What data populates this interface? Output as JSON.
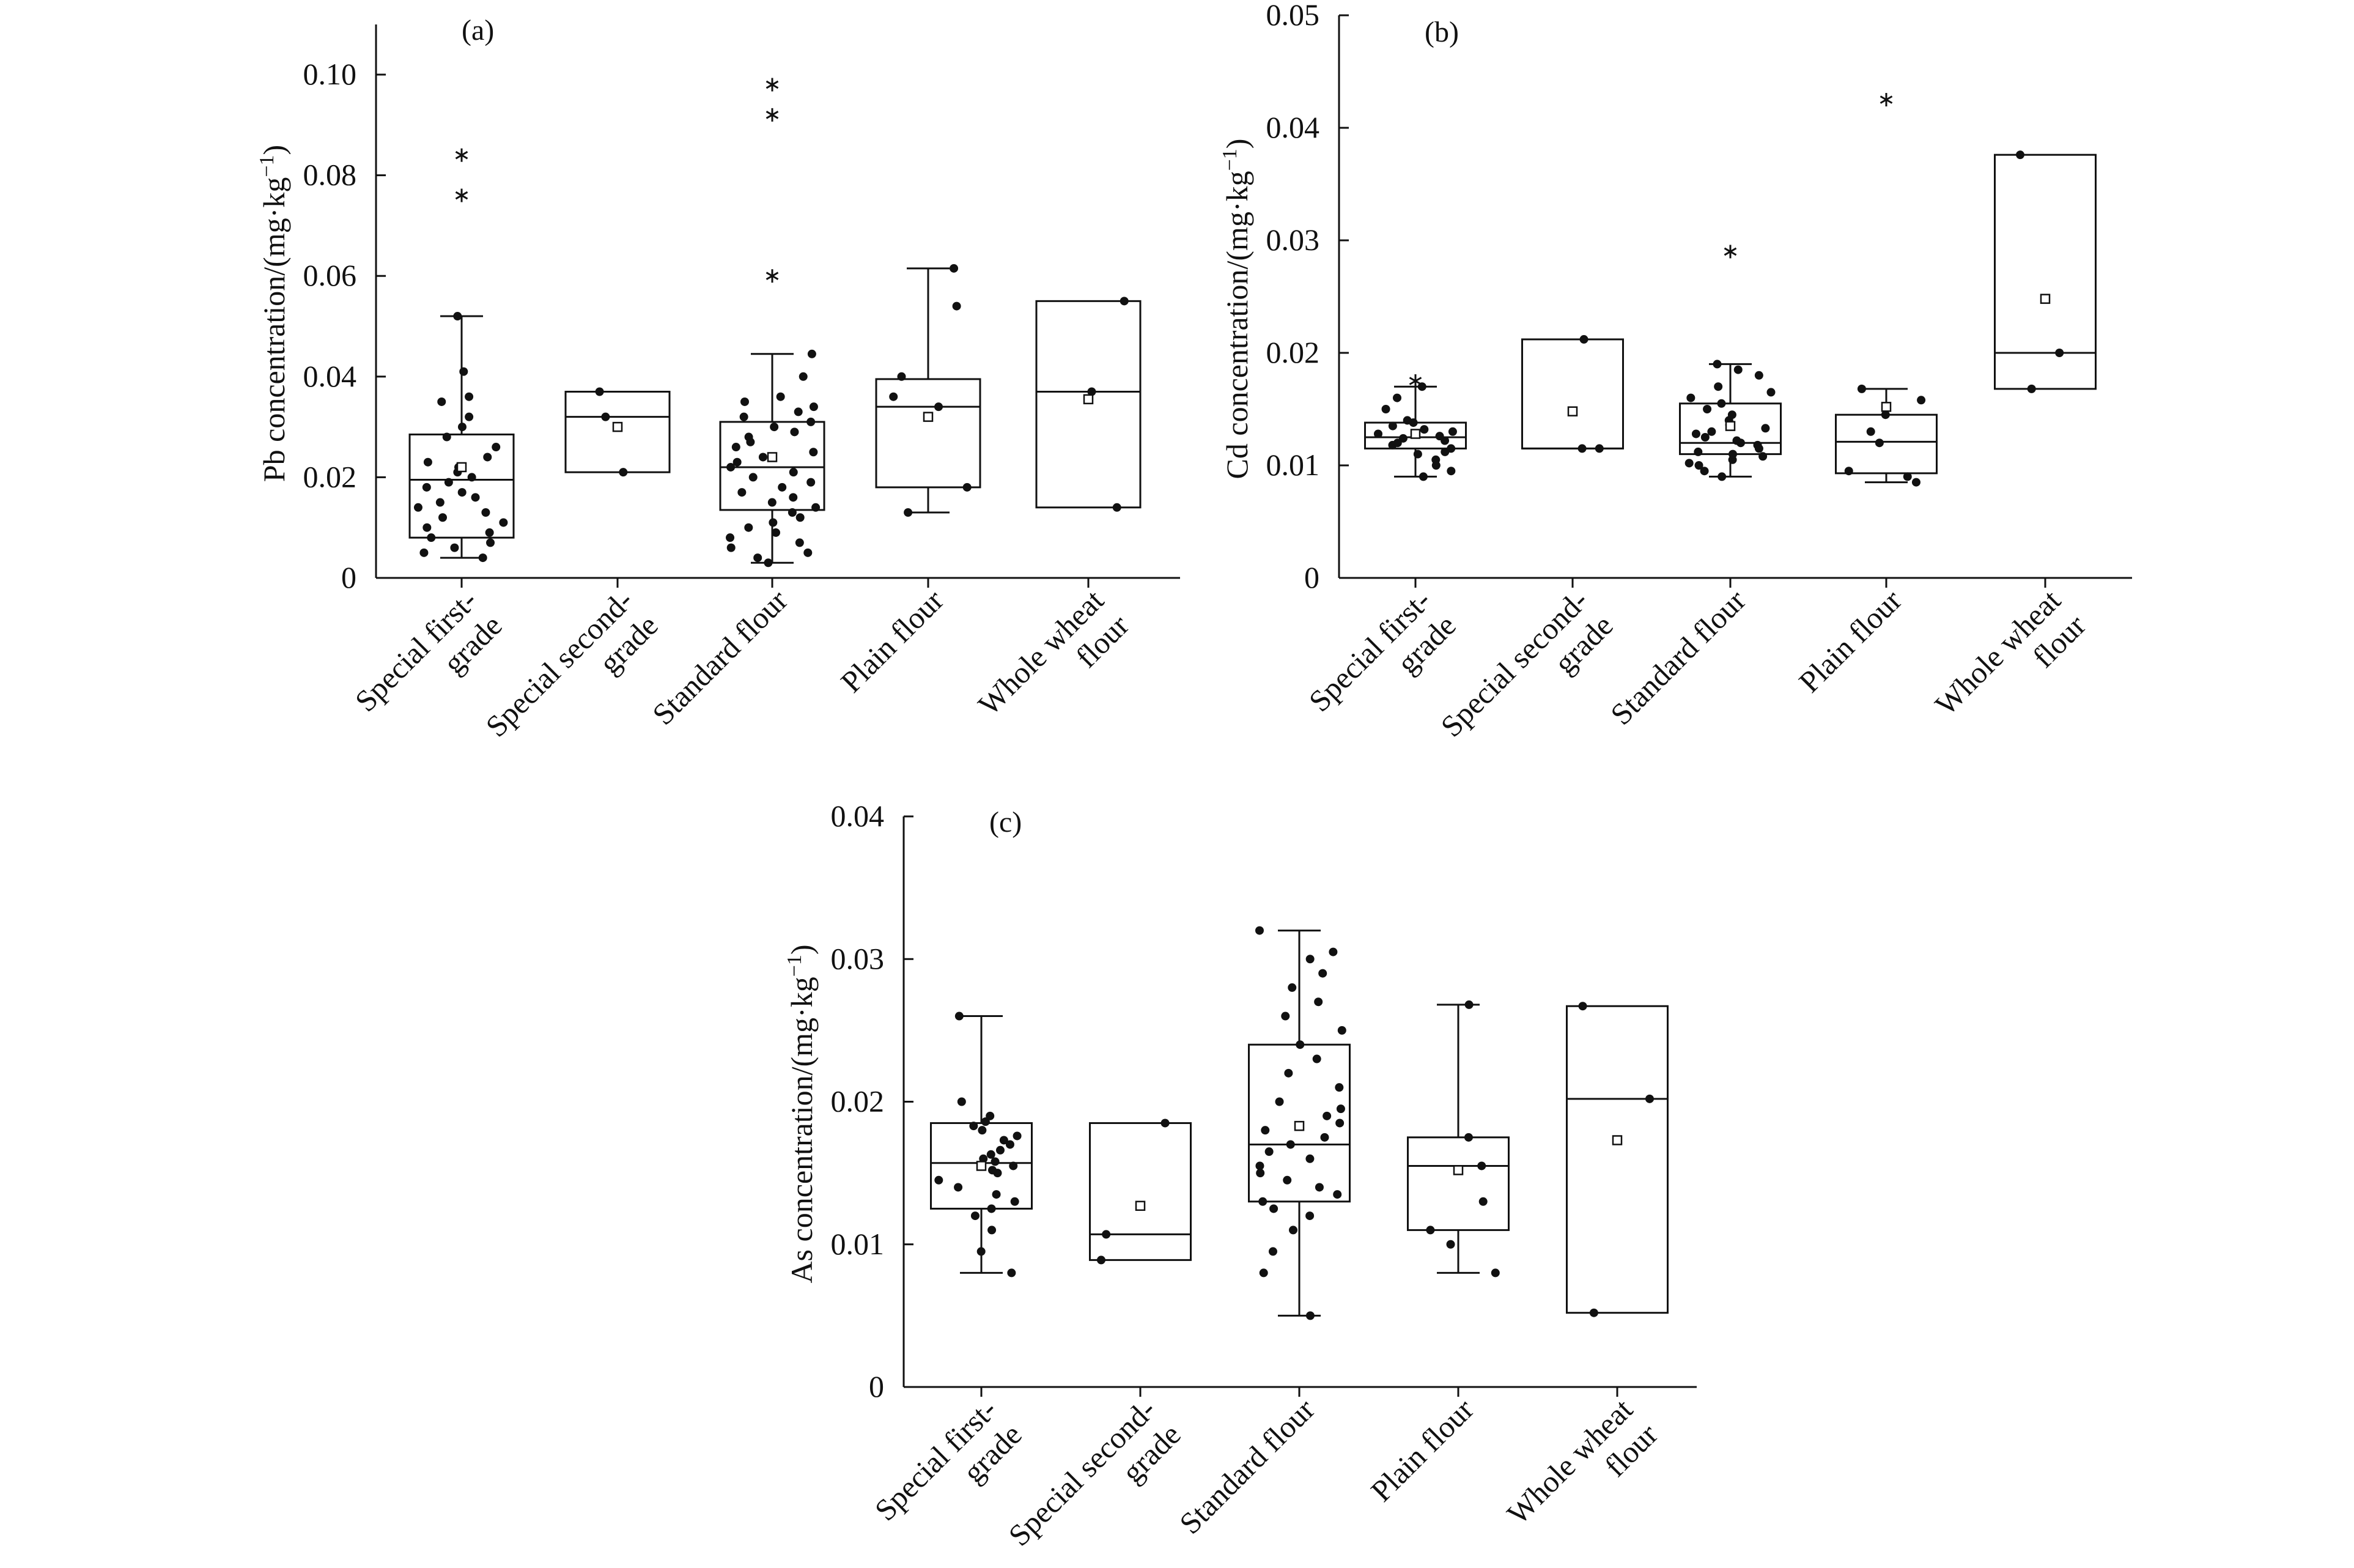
{
  "chart_data": [
    {
      "type": "box",
      "panel_label": "(a)",
      "ylabel": "Pb concentration/(mg·kg",
      "ylabel_sup": "−1",
      "ylabel_close": ")",
      "ylim": [
        0,
        0.11
      ],
      "yticks": [
        0,
        0.02,
        0.04,
        0.06,
        0.08,
        0.1
      ],
      "ytick_labels": [
        "0",
        "0.02",
        "0.04",
        "0.06",
        "0.08",
        "0.10"
      ],
      "categories": [
        "Special first-|grade",
        "Special second-|grade",
        "Standard flour",
        "Plain flour",
        "Whole wheat|flour"
      ],
      "boxes": [
        {
          "min": 0.004,
          "q1": 0.008,
          "median": 0.0195,
          "q3": 0.0285,
          "max": 0.052,
          "mean": 0.022,
          "outliers": [
            0.076,
            0.084
          ],
          "points": [
            0.004,
            0.005,
            0.006,
            0.007,
            0.008,
            0.009,
            0.01,
            0.011,
            0.012,
            0.013,
            0.014,
            0.015,
            0.016,
            0.017,
            0.018,
            0.019,
            0.02,
            0.021,
            0.022,
            0.023,
            0.024,
            0.026,
            0.028,
            0.03,
            0.032,
            0.035,
            0.036,
            0.041,
            0.052
          ]
        },
        {
          "min": 0.021,
          "q1": 0.021,
          "median": 0.032,
          "q3": 0.037,
          "max": 0.037,
          "mean": 0.03,
          "outliers": [],
          "points": [
            0.021,
            0.032,
            0.037
          ]
        },
        {
          "min": 0.003,
          "q1": 0.0135,
          "median": 0.022,
          "q3": 0.031,
          "max": 0.0445,
          "mean": 0.024,
          "outliers": [
            0.06,
            0.092,
            0.098
          ],
          "points": [
            0.003,
            0.004,
            0.005,
            0.006,
            0.007,
            0.008,
            0.009,
            0.01,
            0.011,
            0.012,
            0.013,
            0.014,
            0.015,
            0.016,
            0.017,
            0.018,
            0.019,
            0.02,
            0.021,
            0.022,
            0.023,
            0.024,
            0.025,
            0.026,
            0.027,
            0.028,
            0.029,
            0.03,
            0.031,
            0.032,
            0.033,
            0.034,
            0.035,
            0.036,
            0.04,
            0.0445
          ]
        },
        {
          "min": 0.013,
          "q1": 0.018,
          "median": 0.034,
          "q3": 0.0395,
          "max": 0.0615,
          "mean": 0.032,
          "outliers": [],
          "points": [
            0.013,
            0.018,
            0.034,
            0.036,
            0.04,
            0.054,
            0.0615
          ]
        },
        {
          "min": 0.014,
          "q1": 0.014,
          "median": 0.037,
          "q3": 0.055,
          "max": 0.055,
          "mean": 0.0355,
          "outliers": [],
          "points": [
            0.014,
            0.037,
            0.055
          ]
        }
      ]
    },
    {
      "type": "box",
      "panel_label": "(b)",
      "ylabel": "Cd concentration/(mg·kg",
      "ylabel_sup": "−1",
      "ylabel_close": ")",
      "ylim": [
        0,
        0.05
      ],
      "yticks": [
        0,
        0.01,
        0.02,
        0.03,
        0.04,
        0.05
      ],
      "ytick_labels": [
        "0",
        "0.01",
        "0.02",
        "0.03",
        "0.04",
        "0.05"
      ],
      "categories": [
        "Special first-|grade",
        "Special second-|grade",
        "Standard flour",
        "Plain flour",
        "Whole wheat|flour"
      ],
      "boxes": [
        {
          "min": 0.009,
          "q1": 0.0115,
          "median": 0.0125,
          "q3": 0.0138,
          "max": 0.017,
          "mean": 0.0128,
          "outliers": [
            0.0175
          ],
          "points": [
            0.009,
            0.0095,
            0.01,
            0.0105,
            0.011,
            0.0112,
            0.0115,
            0.0118,
            0.012,
            0.0122,
            0.0124,
            0.0126,
            0.0128,
            0.013,
            0.0132,
            0.0135,
            0.0138,
            0.014,
            0.015,
            0.016,
            0.017
          ]
        },
        {
          "min": 0.0115,
          "q1": 0.0115,
          "median": 0.0115,
          "q3": 0.0212,
          "max": 0.0212,
          "mean": 0.0148,
          "outliers": [],
          "points": [
            0.0115,
            0.0115,
            0.0212
          ]
        },
        {
          "min": 0.009,
          "q1": 0.011,
          "median": 0.012,
          "q3": 0.0155,
          "max": 0.019,
          "mean": 0.0135,
          "outliers": [
            0.029
          ],
          "points": [
            0.009,
            0.0095,
            0.01,
            0.0102,
            0.0105,
            0.0108,
            0.011,
            0.0112,
            0.0115,
            0.0118,
            0.012,
            0.0122,
            0.0125,
            0.0128,
            0.013,
            0.0133,
            0.0136,
            0.014,
            0.0145,
            0.015,
            0.0155,
            0.016,
            0.0165,
            0.017,
            0.018,
            0.0185,
            0.019
          ]
        },
        {
          "min": 0.0085,
          "q1": 0.0093,
          "median": 0.0121,
          "q3": 0.0145,
          "max": 0.0168,
          "mean": 0.0152,
          "outliers": [
            0.0425
          ],
          "points": [
            0.0085,
            0.009,
            0.0095,
            0.012,
            0.013,
            0.0145,
            0.0158,
            0.0168
          ]
        },
        {
          "min": 0.0168,
          "q1": 0.0168,
          "median": 0.02,
          "q3": 0.0376,
          "max": 0.0376,
          "mean": 0.0248,
          "outliers": [],
          "points": [
            0.0168,
            0.02,
            0.0376
          ]
        }
      ]
    },
    {
      "type": "box",
      "panel_label": "(c)",
      "ylabel": "As concentration/(mg·kg",
      "ylabel_sup": "−1",
      "ylabel_close": ")",
      "ylim": [
        0,
        0.04
      ],
      "yticks": [
        0,
        0.01,
        0.02,
        0.03,
        0.04
      ],
      "ytick_labels": [
        "0",
        "0.01",
        "0.02",
        "0.03",
        "0.04"
      ],
      "categories": [
        "Special first-|grade",
        "Special second-|grade",
        "Standard flour",
        "Plain flour",
        "Whole wheat|flour"
      ],
      "boxes": [
        {
          "min": 0.008,
          "q1": 0.0125,
          "median": 0.0157,
          "q3": 0.0185,
          "max": 0.026,
          "mean": 0.0155,
          "outliers": [],
          "points": [
            0.008,
            0.0095,
            0.011,
            0.012,
            0.0125,
            0.013,
            0.0135,
            0.014,
            0.0145,
            0.015,
            0.0152,
            0.0155,
            0.0158,
            0.016,
            0.0163,
            0.0166,
            0.017,
            0.0173,
            0.0176,
            0.018,
            0.0183,
            0.0186,
            0.019,
            0.02,
            0.026
          ]
        },
        {
          "min": 0.0089,
          "q1": 0.0089,
          "median": 0.0107,
          "q3": 0.0185,
          "max": 0.0185,
          "mean": 0.0127,
          "outliers": [],
          "points": [
            0.0089,
            0.0107,
            0.0185
          ]
        },
        {
          "min": 0.005,
          "q1": 0.013,
          "median": 0.017,
          "q3": 0.024,
          "max": 0.032,
          "mean": 0.0183,
          "outliers": [],
          "points": [
            0.005,
            0.008,
            0.0095,
            0.011,
            0.012,
            0.0125,
            0.013,
            0.0135,
            0.014,
            0.0145,
            0.015,
            0.0155,
            0.016,
            0.0165,
            0.017,
            0.0175,
            0.018,
            0.0185,
            0.019,
            0.0195,
            0.02,
            0.021,
            0.022,
            0.023,
            0.024,
            0.025,
            0.026,
            0.027,
            0.028,
            0.029,
            0.03,
            0.0305,
            0.032
          ]
        },
        {
          "min": 0.008,
          "q1": 0.011,
          "median": 0.0155,
          "q3": 0.0175,
          "max": 0.0268,
          "mean": 0.0152,
          "outliers": [],
          "points": [
            0.008,
            0.01,
            0.011,
            0.013,
            0.0155,
            0.0175,
            0.0268
          ]
        },
        {
          "min": 0.0052,
          "q1": 0.0052,
          "median": 0.0202,
          "q3": 0.0267,
          "max": 0.0267,
          "mean": 0.0173,
          "outliers": [],
          "points": [
            0.0052,
            0.0202,
            0.0267
          ]
        }
      ]
    }
  ]
}
